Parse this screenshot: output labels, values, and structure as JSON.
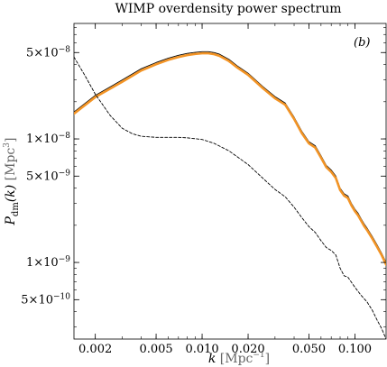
{
  "chart_data": {
    "type": "line",
    "title": "WIMP overdensity power spectrum",
    "panel_label": "(b)",
    "xlabel": {
      "symbol": "k",
      "unit_open": "[Mpc",
      "unit_exp": "−1",
      "unit_close": "]"
    },
    "ylabel": {
      "symbol": "P",
      "subscript": "dm",
      "arg": "(k)",
      "unit_open": "[Mpc",
      "unit_exp": "3",
      "unit_close": "]"
    },
    "x_scale": "log",
    "y_scale": "log",
    "xlim": [
      0.00145,
      0.16
    ],
    "ylim": [
      2.4e-10,
      8.6e-08
    ],
    "x_ticks": [
      {
        "value": 0.002,
        "label": "0.002"
      },
      {
        "value": 0.005,
        "label": "0.005"
      },
      {
        "value": 0.01,
        "label": "0.010"
      },
      {
        "value": 0.02,
        "label": "0.020"
      },
      {
        "value": 0.05,
        "label": "0.050"
      },
      {
        "value": 0.1,
        "label": "0.100"
      }
    ],
    "y_ticks": [
      {
        "value": 5e-08,
        "mant": "5×10",
        "exp": "−8"
      },
      {
        "value": 1e-08,
        "mant": "1×10",
        "exp": "−8"
      },
      {
        "value": 5e-09,
        "mant": "5×10",
        "exp": "−9"
      },
      {
        "value": 1e-09,
        "mant": "1×10",
        "exp": "−9"
      },
      {
        "value": 5e-10,
        "mant": "5×10",
        "exp": "−10"
      }
    ],
    "grid": false,
    "series": [
      {
        "style": "solid",
        "color": "#000000",
        "x": [
          0.00145,
          0.002,
          0.003,
          0.004,
          0.005,
          0.006,
          0.007,
          0.008,
          0.009,
          0.01,
          0.011,
          0.012,
          0.013,
          0.015,
          0.017,
          0.02,
          0.025,
          0.03,
          0.035,
          0.04,
          0.045,
          0.05,
          0.055,
          0.06,
          0.065,
          0.07,
          0.075,
          0.08,
          0.085,
          0.09,
          0.095,
          0.1,
          0.105,
          0.11,
          0.115,
          0.12,
          0.13,
          0.14,
          0.15,
          0.16
        ],
        "y": [
          1.65e-08,
          2.25e-08,
          3e-08,
          3.7e-08,
          4.15e-08,
          4.5e-08,
          4.75e-08,
          4.92e-08,
          5.02e-08,
          5.08e-08,
          5.08e-08,
          5e-08,
          4.85e-08,
          4.4e-08,
          3.9e-08,
          3.4e-08,
          2.65e-08,
          2.2e-08,
          1.95e-08,
          1.5e-08,
          1.15e-08,
          9.5e-09,
          8.8e-09,
          7.3e-09,
          6.1e-09,
          5.6e-09,
          5e-09,
          4e-09,
          3.6e-09,
          3.45e-09,
          3e-09,
          2.7e-09,
          2.5e-09,
          2.25e-09,
          2.05e-09,
          1.9e-09,
          1.62e-09,
          1.38e-09,
          1.18e-09,
          1e-09
        ]
      },
      {
        "style": "solid",
        "color": "#F39425",
        "x": [
          0.00145,
          0.002,
          0.003,
          0.004,
          0.005,
          0.006,
          0.007,
          0.008,
          0.009,
          0.01,
          0.011,
          0.012,
          0.013,
          0.015,
          0.017,
          0.02,
          0.025,
          0.03,
          0.035,
          0.04,
          0.045,
          0.05,
          0.055,
          0.06,
          0.065,
          0.07,
          0.075,
          0.08,
          0.085,
          0.09,
          0.095,
          0.1,
          0.105,
          0.11,
          0.115,
          0.12,
          0.13,
          0.14,
          0.15,
          0.16
        ],
        "y": [
          1.6e-08,
          2.18e-08,
          2.9e-08,
          3.58e-08,
          4.02e-08,
          4.36e-08,
          4.6e-08,
          4.77e-08,
          4.87e-08,
          4.93e-08,
          4.93e-08,
          4.85e-08,
          4.7e-08,
          4.26e-08,
          3.78e-08,
          3.3e-08,
          2.57e-08,
          2.13e-08,
          1.89e-08,
          1.45e-08,
          1.11e-08,
          9.2e-09,
          8.5e-09,
          7.05e-09,
          5.9e-09,
          5.4e-09,
          4.82e-09,
          3.86e-09,
          3.47e-09,
          3.32e-09,
          2.89e-09,
          2.6e-09,
          2.4e-09,
          2.17e-09,
          1.97e-09,
          1.83e-09,
          1.56e-09,
          1.33e-09,
          1.14e-09,
          9.6e-10
        ]
      },
      {
        "style": "dashed",
        "color": "#000000",
        "x": [
          0.00145,
          0.0017,
          0.002,
          0.0025,
          0.003,
          0.0035,
          0.004,
          0.005,
          0.006,
          0.007,
          0.008,
          0.01,
          0.012,
          0.015,
          0.02,
          0.025,
          0.03,
          0.035,
          0.04,
          0.045,
          0.05,
          0.055,
          0.06,
          0.065,
          0.07,
          0.075,
          0.08,
          0.085,
          0.09,
          0.1,
          0.11,
          0.12,
          0.13,
          0.14,
          0.15,
          0.16
        ],
        "y": [
          4.6e-08,
          3.3e-08,
          2.3e-08,
          1.55e-08,
          1.22e-08,
          1.1e-08,
          1.05e-08,
          1.03e-08,
          1.03e-08,
          1.03e-08,
          1.02e-08,
          9.9e-09,
          9.2e-09,
          8e-09,
          6.2e-09,
          4.8e-09,
          3.9e-09,
          3.4e-09,
          2.8e-09,
          2.3e-09,
          1.95e-09,
          1.75e-09,
          1.5e-09,
          1.32e-09,
          1.25e-09,
          1.15e-09,
          9e-10,
          7.8e-10,
          7.6e-10,
          6.3e-10,
          5.4e-10,
          4.8e-10,
          4.1e-10,
          3.4e-10,
          2.9e-10,
          2.4e-10
        ]
      }
    ]
  }
}
